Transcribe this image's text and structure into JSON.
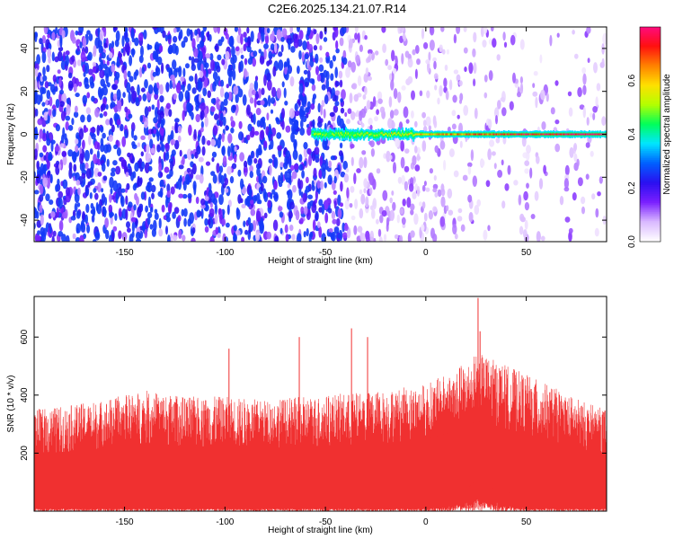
{
  "figure_title": "C2E6.2025.134.21.07.R14",
  "chart_data": [
    {
      "type": "heatmap",
      "title": "",
      "xlabel": "Height of straight line (km)",
      "ylabel": "Frequency (Hz)",
      "xlim": [
        -195,
        90
      ],
      "ylim": [
        -50,
        50
      ],
      "xticks": [
        -150,
        -100,
        -50,
        0,
        50
      ],
      "yticks": [
        -40,
        -20,
        0,
        20,
        40
      ],
      "colorbar": {
        "label": "Normalized spectral amplitude",
        "range": [
          0.0,
          0.8
        ],
        "ticks": [
          0.0,
          0.2,
          0.4,
          0.6
        ],
        "colormap": [
          "#ffffff",
          "#d9b8ff",
          "#7a1fff",
          "#2a10f0",
          "#0060ff",
          "#00e6ff",
          "#00ff5a",
          "#b4ff00",
          "#ffe000",
          "#ff8000",
          "#ff1010",
          "#ff0a80"
        ]
      },
      "signal_band": {
        "frequency": 0,
        "x_start": -57,
        "x_end": 90,
        "peak_amplitude": 0.75
      },
      "background": {
        "dense_region_x": [
          -195,
          -40
        ],
        "sparse_region_x": [
          -40,
          90
        ],
        "dense_amplitude": 0.12,
        "sparse_amplitude": 0.04
      }
    },
    {
      "type": "area",
      "title": "",
      "xlabel": "Height of straight line (km)",
      "ylabel": "SNR (10 * v/v)",
      "xlim": [
        -195,
        90
      ],
      "ylim": [
        0,
        740
      ],
      "xticks": [
        -150,
        -100,
        -50,
        0,
        50
      ],
      "yticks": [
        200,
        400,
        600
      ],
      "series": [
        {
          "color": "#f03030",
          "envelope_x": [
            -195,
            -180,
            -160,
            -140,
            -120,
            -100,
            -80,
            -60,
            -40,
            -20,
            0,
            10,
            20,
            25,
            30,
            40,
            50,
            60,
            70,
            80,
            90
          ],
          "envelope_upper": [
            320,
            330,
            350,
            380,
            360,
            360,
            350,
            360,
            370,
            380,
            400,
            430,
            470,
            500,
            490,
            460,
            430,
            400,
            370,
            340,
            320
          ],
          "envelope_lower": [
            10,
            10,
            10,
            10,
            10,
            10,
            10,
            10,
            10,
            10,
            10,
            15,
            30,
            60,
            40,
            20,
            10,
            10,
            10,
            10,
            10
          ],
          "peaks": [
            {
              "x": 26,
              "y": 735
            },
            {
              "x": 27,
              "y": 620
            },
            {
              "x": -37,
              "y": 630
            },
            {
              "x": -63,
              "y": 600
            },
            {
              "x": -98,
              "y": 560
            },
            {
              "x": -29,
              "y": 600
            }
          ]
        }
      ]
    }
  ]
}
